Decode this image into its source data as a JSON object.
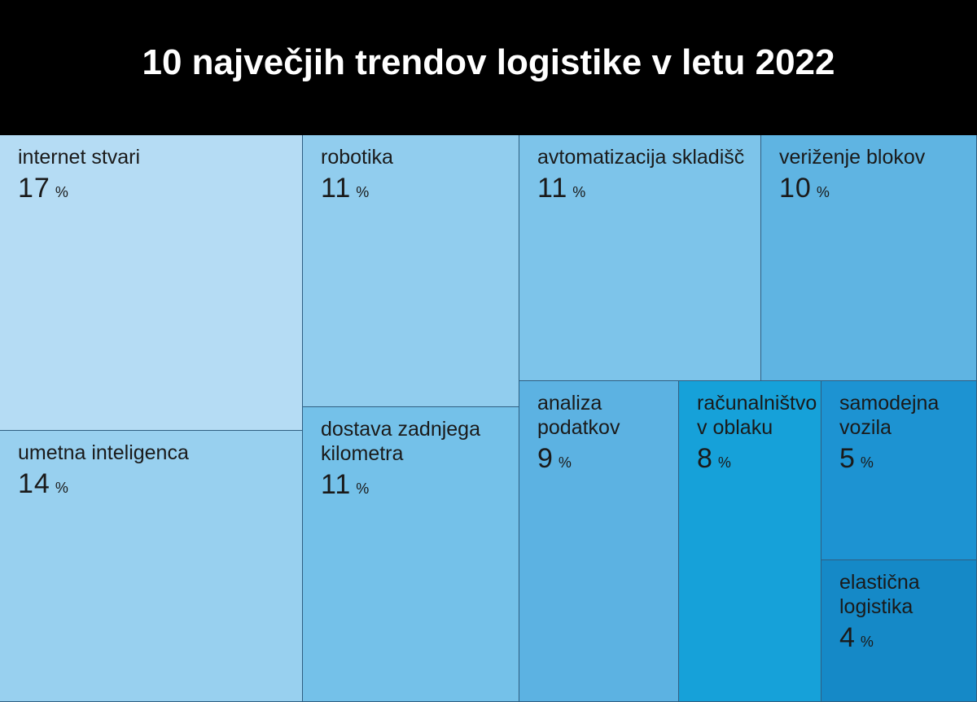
{
  "title": "10 največjih trendov logistike v letu 2022",
  "chart_data": {
    "type": "treemap",
    "title": "10 največjih trendov logistike v letu 2022",
    "unit": "%",
    "items": [
      {
        "label": "internet stvari",
        "value": 17,
        "color": "#b5dcf4"
      },
      {
        "label": "umetna inteligenca",
        "value": 14,
        "color": "#98d0ef"
      },
      {
        "label": "robotika",
        "value": 11,
        "color": "#91cdee"
      },
      {
        "label": "dostava zadnjega\nkilometra",
        "value": 11,
        "color": "#74c1e9"
      },
      {
        "label": "avtomatizacija skladišč",
        "value": 11,
        "color": "#7dc4ea"
      },
      {
        "label": "veriženje blokov",
        "value": 10,
        "color": "#5fb4e2"
      },
      {
        "label": "analiza\npodatkov",
        "value": 9,
        "color": "#5cb2e2"
      },
      {
        "label": "računalništvo\nv oblaku",
        "value": 8,
        "color": "#16a1d9"
      },
      {
        "label": "samodejna\nvozila",
        "value": 5,
        "color": "#1d93d2"
      },
      {
        "label": "elastična\nlogistika",
        "value": 4,
        "color": "#1589c7"
      }
    ]
  }
}
